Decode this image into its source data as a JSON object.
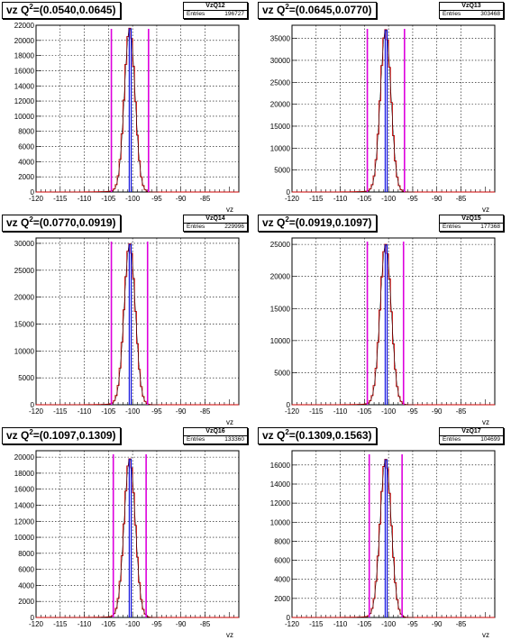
{
  "x_axis_label": "vz",
  "entries_label": "Entries",
  "colors": {
    "histogram_red": "#cc0000",
    "fit_blue": "#0000dd",
    "cut_magenta": "#dd00dd",
    "grid": "#000000"
  },
  "chart_data": [
    {
      "type": "bar",
      "title_prefix": "vz Q",
      "title_sup": "2",
      "title_range": "=(0.0540,0.0645)",
      "name": "VzQ12",
      "entries": "196727",
      "xlim": [
        -120,
        -78
      ],
      "ylim": [
        0,
        22000
      ],
      "xticks": [
        -120,
        -115,
        -110,
        -105,
        -100,
        -95,
        -90,
        -85
      ],
      "yticks": [
        0,
        2000,
        4000,
        6000,
        8000,
        10000,
        12000,
        14000,
        16000,
        18000,
        20000,
        22000
      ],
      "peak_x": -100.6,
      "peak_y": 21600,
      "sigma": 1.1,
      "cut_lines_x": [
        -104.4,
        -96.7
      ],
      "fit_lines": [
        {
          "x": -100.7,
          "y": 21600
        },
        {
          "x": -100.3,
          "y": 21600
        }
      ]
    },
    {
      "type": "bar",
      "title_prefix": "vz Q",
      "title_sup": "2",
      "title_range": "=(0.0645,0.0770)",
      "name": "VzQ13",
      "entries": "303468",
      "xlim": [
        -120,
        -78
      ],
      "ylim": [
        0,
        38000
      ],
      "xticks": [
        -120,
        -115,
        -110,
        -105,
        -100,
        -95,
        -90,
        -85
      ],
      "yticks": [
        0,
        5000,
        10000,
        15000,
        20000,
        25000,
        30000,
        35000
      ],
      "peak_x": -100.6,
      "peak_y": 37000,
      "sigma": 1.1,
      "cut_lines_x": [
        -104.4,
        -96.7
      ],
      "fit_lines": [
        {
          "x": -100.7,
          "y": 37000
        },
        {
          "x": -100.3,
          "y": 37000
        }
      ]
    },
    {
      "type": "bar",
      "title_prefix": "vz Q",
      "title_sup": "2",
      "title_range": "=(0.0770,0.0919)",
      "name": "VzQ14",
      "entries": "229996",
      "xlim": [
        -120,
        -78
      ],
      "ylim": [
        0,
        31000
      ],
      "xticks": [
        -120,
        -115,
        -110,
        -105,
        -100,
        -95,
        -90,
        -85
      ],
      "yticks": [
        0,
        5000,
        10000,
        15000,
        20000,
        25000,
        30000
      ],
      "peak_x": -100.6,
      "peak_y": 29900,
      "sigma": 1.15,
      "cut_lines_x": [
        -104.4,
        -96.9
      ],
      "fit_lines": [
        {
          "x": -100.7,
          "y": 29900
        },
        {
          "x": -100.3,
          "y": 29900
        }
      ]
    },
    {
      "type": "bar",
      "title_prefix": "vz Q",
      "title_sup": "2",
      "title_range": "=(0.0919,0.1097)",
      "name": "VzQ15",
      "entries": "177368",
      "xlim": [
        -120,
        -78
      ],
      "ylim": [
        0,
        26000
      ],
      "xticks": [
        -120,
        -115,
        -110,
        -105,
        -100,
        -95,
        -90,
        -85
      ],
      "yticks": [
        0,
        5000,
        10000,
        15000,
        20000,
        25000
      ],
      "peak_x": -100.6,
      "peak_y": 25000,
      "sigma": 1.15,
      "cut_lines_x": [
        -104.4,
        -96.9
      ],
      "fit_lines": [
        {
          "x": -100.7,
          "y": 25000
        },
        {
          "x": -100.3,
          "y": 25000
        }
      ]
    },
    {
      "type": "bar",
      "title_prefix": "vz Q",
      "title_sup": "2",
      "title_range": "=(0.1097,0.1309)",
      "name": "VzQ16",
      "entries": "133360",
      "xlim": [
        -120,
        -78
      ],
      "ylim": [
        0,
        20800
      ],
      "xticks": [
        -120,
        -115,
        -110,
        -105,
        -100,
        -95,
        -90,
        -85
      ],
      "yticks": [
        0,
        2000,
        4000,
        6000,
        8000,
        10000,
        12000,
        14000,
        16000,
        18000,
        20000
      ],
      "peak_x": -100.6,
      "peak_y": 19800,
      "sigma": 1.15,
      "cut_lines_x": [
        -104.0,
        -97.2
      ],
      "fit_lines": [
        {
          "x": -100.7,
          "y": 19800
        },
        {
          "x": -100.3,
          "y": 19800
        }
      ]
    },
    {
      "type": "bar",
      "title_prefix": "vz Q",
      "title_sup": "2",
      "title_range": "=(0.1309,0.1563)",
      "name": "VzQ17",
      "entries": "104699",
      "xlim": [
        -120,
        -78
      ],
      "ylim": [
        0,
        17500
      ],
      "xticks": [
        -120,
        -115,
        -110,
        -105,
        -100,
        -95,
        -90,
        -85
      ],
      "yticks": [
        0,
        2000,
        4000,
        6000,
        8000,
        10000,
        12000,
        14000,
        16000
      ],
      "peak_x": -100.6,
      "peak_y": 16600,
      "sigma": 1.15,
      "cut_lines_x": [
        -104.0,
        -97.2
      ],
      "fit_lines": [
        {
          "x": -100.7,
          "y": 16600
        },
        {
          "x": -100.3,
          "y": 16600
        }
      ]
    }
  ]
}
